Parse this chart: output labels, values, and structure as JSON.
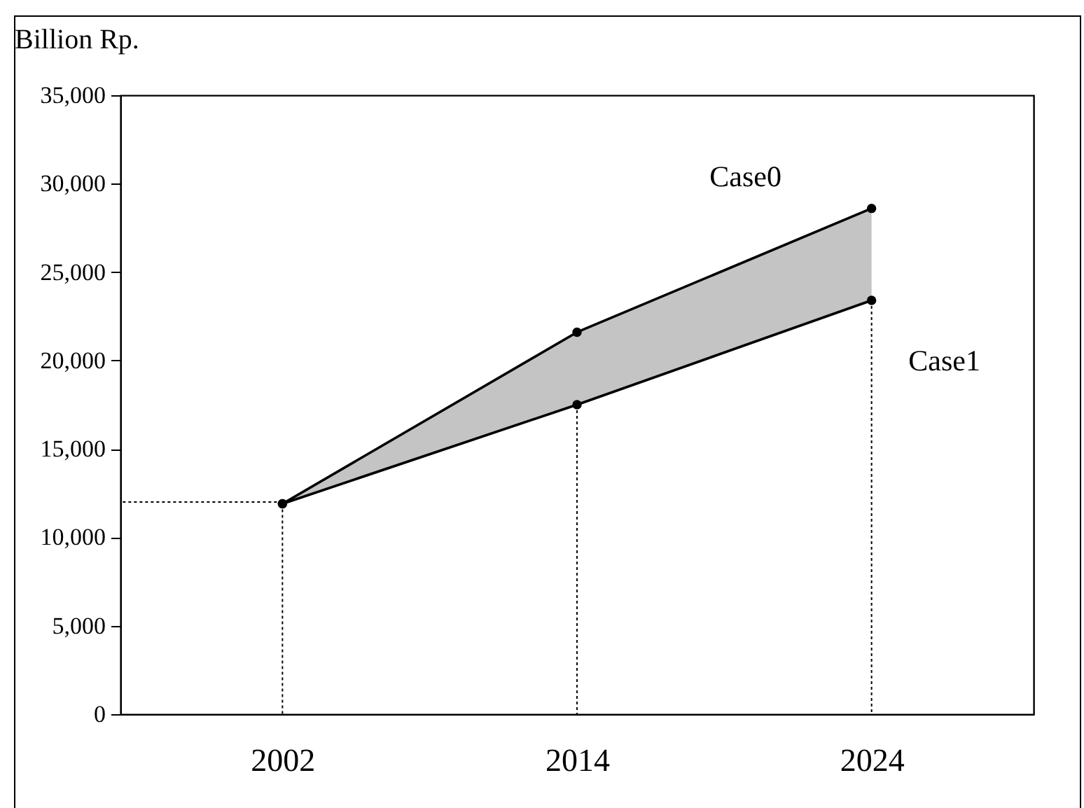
{
  "chart_data": {
    "type": "line",
    "ylabel": "Billion Rp.",
    "categories": [
      "2002",
      "2014",
      "2024"
    ],
    "series": [
      {
        "name": "Case0",
        "color": "#000000",
        "values": [
          11900,
          21600,
          28600
        ],
        "lower": [
          11900,
          17500,
          23400
        ],
        "upper": [
          11900,
          21600,
          28600
        ]
      },
      {
        "name": "Case1",
        "color": "#000000",
        "values": [
          11900,
          17500,
          23400
        ]
      }
    ],
    "ylim": [
      0,
      35000
    ],
    "yticks": [
      0,
      {
        "value": 5000,
        "label": "5,000"
      },
      {
        "value": 10000,
        "label": "10,000"
      },
      {
        "value": 15000,
        "label": "15,000"
      },
      {
        "value": 20000,
        "label": "20,000"
      },
      {
        "value": 25000,
        "label": "25,000"
      },
      {
        "value": 30000,
        "label": "30,000"
      },
      {
        "value": 35000,
        "label": "35,000"
      }
    ],
    "ref_lines": [
      {
        "axis": "y",
        "value": 12000,
        "line_style": "dotted"
      },
      {
        "axis": "x",
        "value": "2002",
        "line_style": "dotted"
      },
      {
        "axis": "x",
        "value": "2014",
        "line_style": "dotted"
      },
      {
        "axis": "x",
        "value": "2024",
        "line_style": "dotted"
      }
    ],
    "marker": "circle",
    "grid": false
  }
}
